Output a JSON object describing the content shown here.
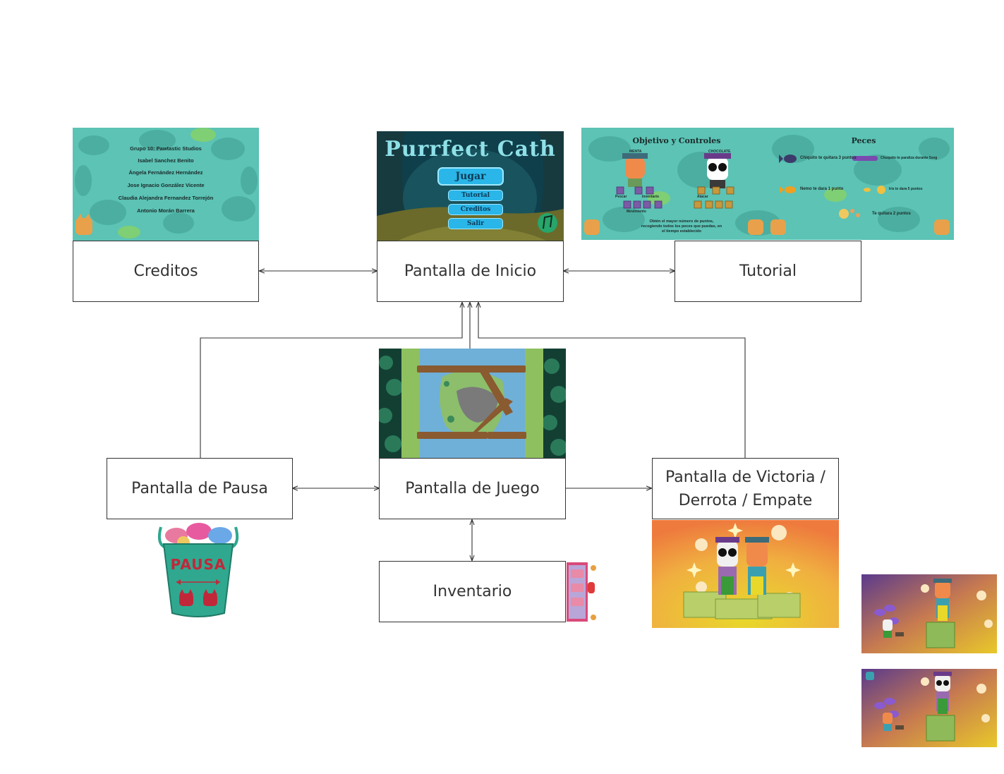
{
  "nodes": {
    "creditos": "Creditos",
    "inicio": "Pantalla de Inicio",
    "tutorial": "Tutorial",
    "pausa": "Pantalla de Pausa",
    "juego": "Pantalla de Juego",
    "victoria_line1": "Pantalla de Victoria /",
    "victoria_line2": "Derrota / Empate",
    "inventario": "Inventario"
  },
  "credits_screen": {
    "lines": [
      "Grupo 10: Pawtastic Studios",
      "Isabel Sanchez Benito",
      "Ángela Fernández Hernández",
      "Jose Ignacio González Vicente",
      "Claudia Alejandra Fernandez Torrejón",
      "Antonio Morán Barrera"
    ]
  },
  "start_screen": {
    "title": "Purrfect Cath",
    "play": "Jugar",
    "tutorial": "Tutorial",
    "credits": "Creditos",
    "exit": "Salir"
  },
  "tutorial_screen": {
    "heading_left": "Objetivo y Controles",
    "heading_right": "Peces",
    "player1": "MENTA",
    "player2": "CHOCOLATE",
    "fish1": "Chiquito te quitara 3 puntos",
    "fish2": "Chuquito te paraliza durante 5seg",
    "fish3": "Nemo te dara 1 punto",
    "fish4": "Iris te dara 5 puntos",
    "fish5": "Te quitara 2 puntos",
    "objective": "Obtén el mayor número de puntos, recogiendo todos los peces que puedas, en el tiempo establecido",
    "keys": {
      "pescar": "Pescar",
      "inventario": "Inventario",
      "movimiento": "Movimiento",
      "atacar": "Atacar"
    }
  },
  "pause_screen": {
    "label": "PAUSA"
  },
  "colors": {
    "teal_bg": "#5cc3b5",
    "deep_bg": "#0f3f4a",
    "button": "#2ab6e8",
    "pause_bucket": "#2fa88f",
    "pause_text": "#c0283a",
    "victory_orange": "#ee9d3e",
    "victory_yellow": "#e8d92a",
    "defeat_purple": "#5a3a8c"
  },
  "icons": [
    "fish-icon",
    "cat-icon",
    "bucket-icon",
    "sparkle-icon",
    "flower-icon",
    "podium-icon"
  ]
}
